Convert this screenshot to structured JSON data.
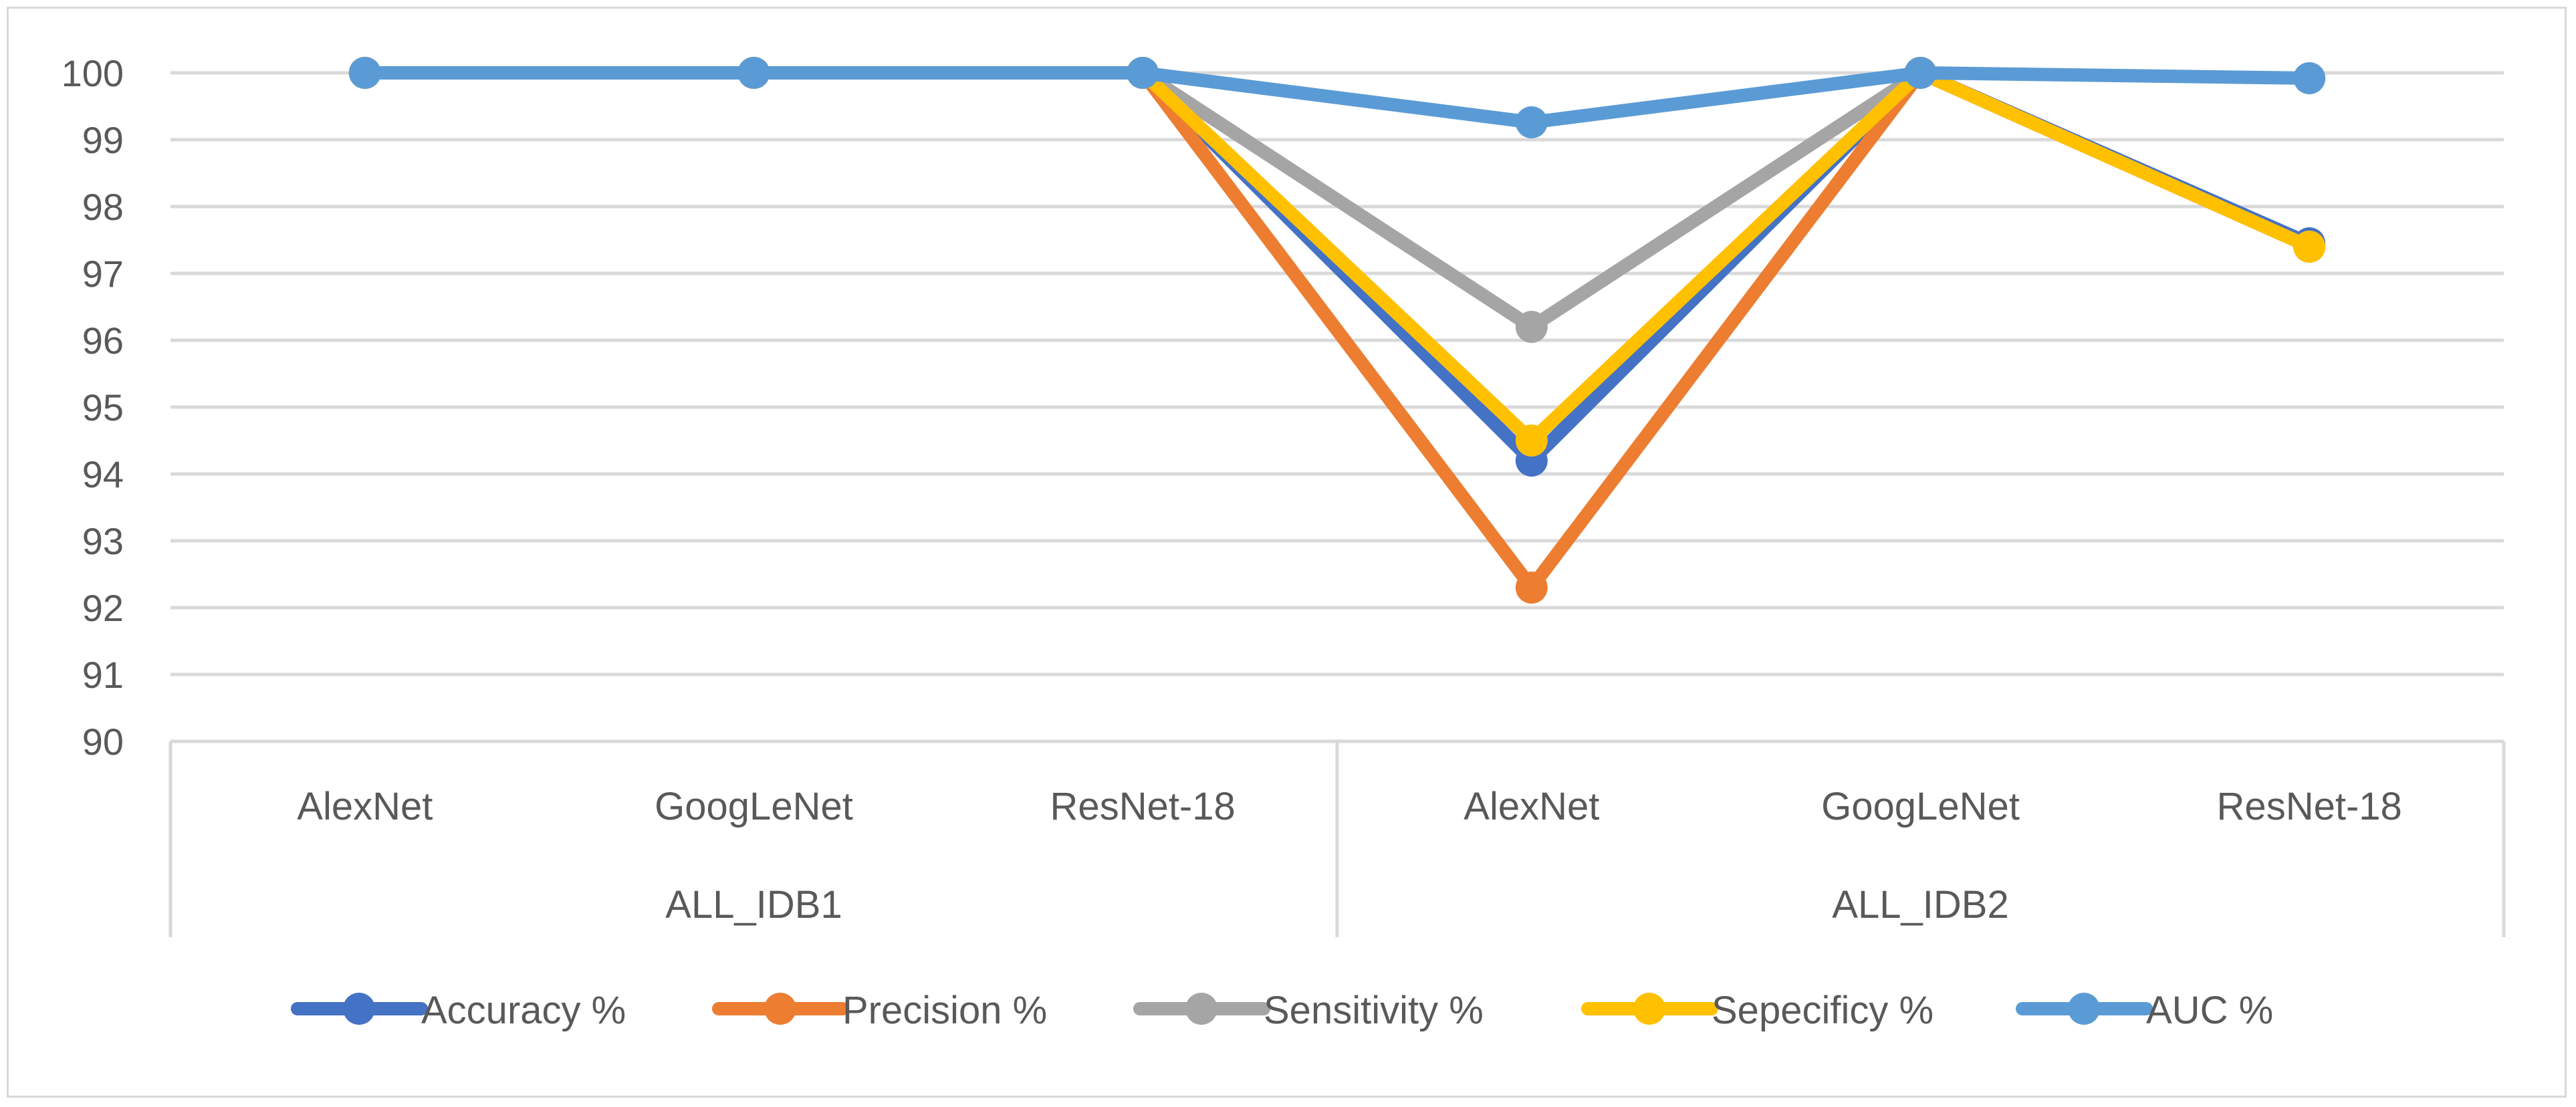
{
  "chart_data": {
    "type": "line",
    "title": "",
    "xlabel": "",
    "ylabel": "",
    "ylim": [
      90,
      100
    ],
    "yticks": [
      90,
      91,
      92,
      93,
      94,
      95,
      96,
      97,
      98,
      99,
      100
    ],
    "grid": true,
    "legend_position": "bottom",
    "categories": [
      "AlexNet",
      "GoogLeNet",
      "ResNet-18",
      "AlexNet",
      "GoogLeNet",
      "ResNet-18"
    ],
    "groups": [
      {
        "label": "ALL_IDB1",
        "span": 3
      },
      {
        "label": "ALL_IDB2",
        "span": 3
      }
    ],
    "series": [
      {
        "name": "Accuracy %",
        "color": "#4472c4",
        "values": [
          100,
          100,
          100,
          94.2,
          100,
          97.45
        ]
      },
      {
        "name": "Precision %",
        "color": "#ed7d31",
        "values": [
          100,
          100,
          100,
          92.3,
          100,
          97.4
        ]
      },
      {
        "name": "Sensitivity %",
        "color": "#a5a5a5",
        "values": [
          100,
          100,
          100,
          96.2,
          100,
          97.4
        ]
      },
      {
        "name": "Sepecificy %",
        "color": "#ffc000",
        "values": [
          100,
          100,
          100,
          94.5,
          100,
          97.4
        ]
      },
      {
        "name": "AUC %",
        "color": "#5b9bd5",
        "values": [
          100,
          100,
          100,
          99.26,
          100,
          99.92
        ]
      }
    ]
  }
}
